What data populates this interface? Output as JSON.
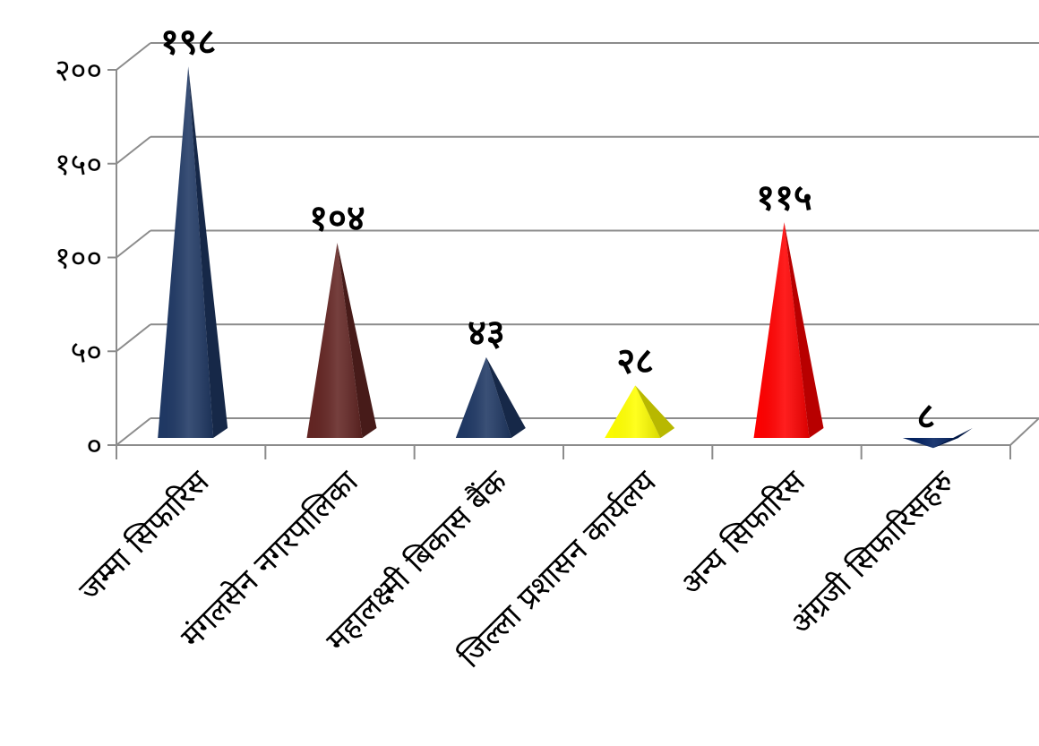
{
  "chart_data": {
    "type": "bar",
    "style": "3d-pyramid",
    "categories": [
      "जम्मा सिफारिस",
      "मंगलसेन नगरपालिका",
      "महालक्ष्मी बिकास बैंक",
      "जिल्ला प्रशासन कार्यलय",
      "अन्य सिफारिस",
      "अंग्रजी सिफारिसहरु"
    ],
    "values": [
      198,
      104,
      43,
      28,
      115,
      8
    ],
    "value_labels": [
      "१९८",
      "१०४",
      "४३",
      "२८",
      "११५",
      "८"
    ],
    "colors": [
      "#1F3864",
      "#632523",
      "#1F3864",
      "#FFFF00",
      "#FF0000",
      "#002060"
    ],
    "y_ticks": [
      0,
      50,
      100,
      150,
      200
    ],
    "y_tick_labels": [
      "०",
      "५०",
      "१००",
      "१५०",
      "२००"
    ],
    "ylim": [
      0,
      200
    ],
    "grid": true,
    "legend": "none",
    "title": "",
    "xlabel": "",
    "ylabel": ""
  }
}
